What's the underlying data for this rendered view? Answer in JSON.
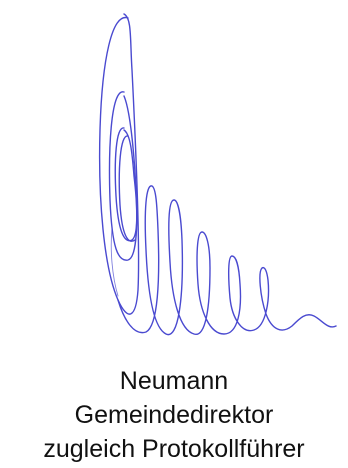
{
  "signatory": {
    "name": "Neumann",
    "title": "Gemeindedirektor",
    "role": "zugleich Protokollführer"
  },
  "signature_image": {
    "ink_color": "#4a4ad0"
  }
}
